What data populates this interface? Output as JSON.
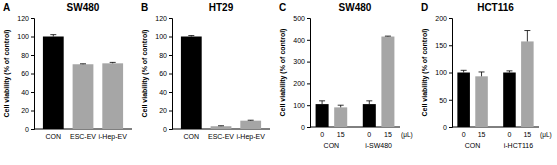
{
  "chart_data": [
    {
      "panel": "A",
      "type": "bar",
      "title": "SW480",
      "ylabel": "Cell viability (% of control)",
      "categories": [
        "CON",
        "ESC-EV",
        "i-Hep-EV"
      ],
      "values": [
        100,
        70,
        71
      ],
      "errors": [
        2,
        0.5,
        1
      ],
      "colors": [
        "#000000",
        "#a6a6a6",
        "#a6a6a6"
      ],
      "ylim": [
        0,
        120
      ],
      "yticks": [
        0,
        20,
        40,
        60,
        80,
        100,
        120
      ]
    },
    {
      "panel": "B",
      "type": "bar",
      "title": "HT29",
      "ylabel": "Cell viability (% of control)",
      "categories": [
        "CON",
        "ESC-EV",
        "i-Hep-EV"
      ],
      "values": [
        100,
        3,
        9
      ],
      "errors": [
        1,
        0.5,
        0.5
      ],
      "colors": [
        "#000000",
        "#a6a6a6",
        "#a6a6a6"
      ],
      "ylim": [
        0,
        120
      ],
      "yticks": [
        0,
        20,
        40,
        60,
        80,
        100,
        120
      ]
    },
    {
      "panel": "C",
      "type": "bar",
      "title": "SW480",
      "ylabel": "Cell viability (% of control)",
      "categories": [
        "0",
        "15",
        "0",
        "15"
      ],
      "groups": [
        "CON",
        "i-SW480"
      ],
      "xlabel": "(μL)",
      "values": [
        105,
        90,
        105,
        415
      ],
      "errors": [
        15,
        10,
        15,
        2
      ],
      "colors": [
        "#000000",
        "#a6a6a6",
        "#000000",
        "#a6a6a6"
      ],
      "ylim": [
        0,
        500
      ],
      "yticks": [
        0,
        100,
        200,
        300,
        400,
        500
      ]
    },
    {
      "panel": "D",
      "type": "bar",
      "title": "HCT116",
      "ylabel": "Cell viability (% of control)",
      "categories": [
        "0",
        "15",
        "0",
        "15"
      ],
      "groups": [
        "CON",
        "i-HCT116"
      ],
      "xlabel": "(μL)",
      "values": [
        100,
        93,
        100,
        157
      ],
      "errors": [
        4,
        8,
        3,
        20
      ],
      "colors": [
        "#000000",
        "#a6a6a6",
        "#000000",
        "#a6a6a6"
      ],
      "ylim": [
        0,
        200
      ],
      "yticks": [
        0,
        50,
        100,
        150,
        200
      ]
    }
  ]
}
